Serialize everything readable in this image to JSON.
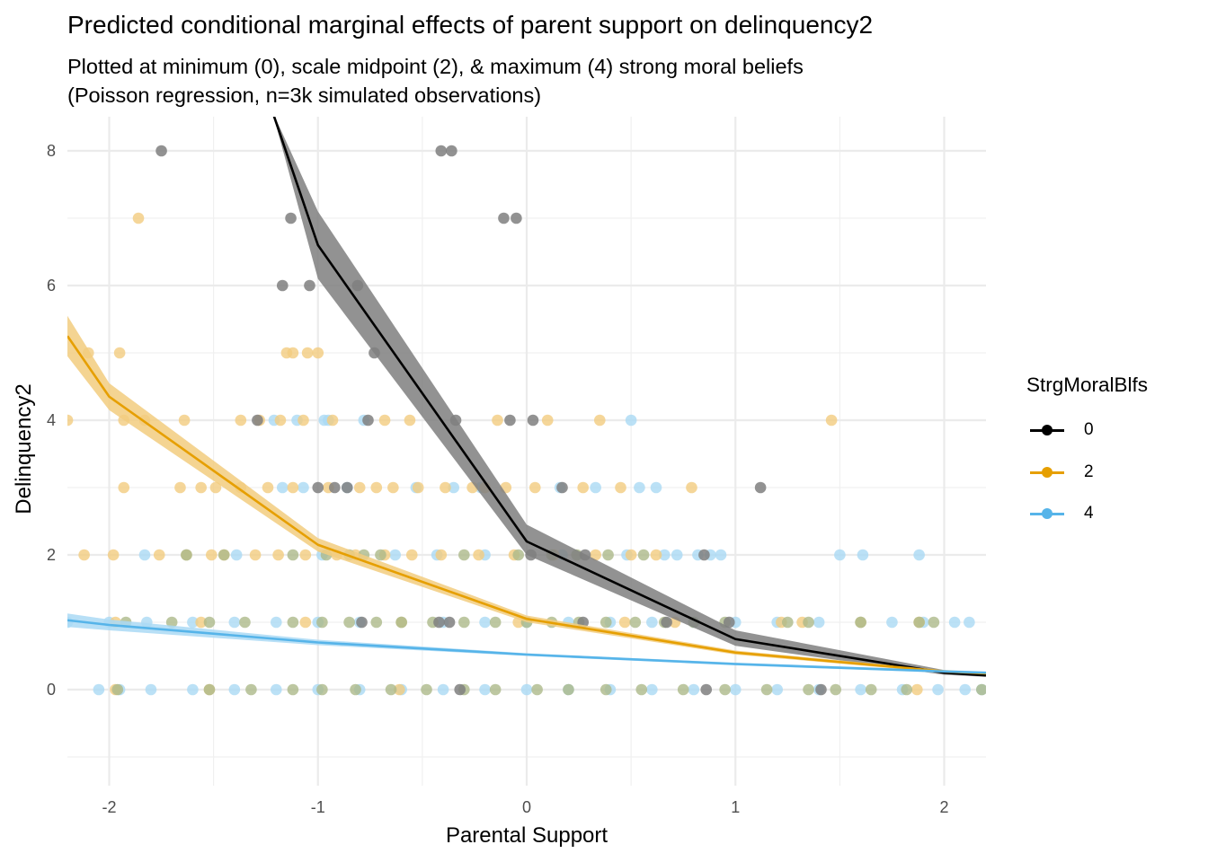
{
  "chart_data": {
    "type": "line",
    "title": "Predicted conditional marginal effects of parent support on delinquency2",
    "subtitle_lines": [
      "Plotted at minimum (0), scale midpoint (2), & maximum (4) strong moral beliefs",
      "(Poisson regression, n=3k simulated observations)"
    ],
    "xlabel": "Parental Support",
    "ylabel": "Delinquency2",
    "xlim": [
      -2.2,
      2.2
    ],
    "ylim": [
      -1.43,
      8.5
    ],
    "x_ticks": [
      -2,
      -1,
      0,
      1,
      2
    ],
    "x_tick_labels": [
      "-2",
      "-1",
      "0",
      "1",
      "2"
    ],
    "y_ticks": [
      0,
      2,
      4,
      6,
      8
    ],
    "y_tick_labels": [
      "0",
      "2",
      "4",
      "6",
      "8"
    ],
    "grid": true,
    "legend": {
      "title": "StrgMoralBlfs",
      "placement": "right",
      "entries": [
        {
          "label": "0",
          "color": "#000000"
        },
        {
          "label": "2",
          "color": "#E69F00"
        },
        {
          "label": "4",
          "color": "#56B4E9"
        }
      ]
    },
    "series": [
      {
        "name": "0",
        "color": "#000000",
        "ribbon_color": "#7f7f7f",
        "x": [
          -1.22,
          -1.0,
          0.0,
          1.0,
          2.0,
          2.2
        ],
        "y": [
          8.6,
          6.6,
          2.2,
          0.75,
          0.25,
          0.21
        ],
        "ci_low": [
          8.6,
          6.1,
          2.0,
          0.65,
          0.22,
          0.19
        ],
        "ci_high": [
          8.6,
          7.1,
          2.45,
          0.88,
          0.29,
          0.24
        ]
      },
      {
        "name": "2",
        "color": "#E69F00",
        "ribbon_color": "#F2CC7F",
        "x": [
          -2.2,
          -2.0,
          -1.0,
          0.0,
          1.0,
          2.0,
          2.2
        ],
        "y": [
          5.25,
          4.35,
          2.15,
          1.05,
          0.55,
          0.27,
          0.24
        ],
        "ci_low": [
          4.95,
          4.15,
          2.05,
          1.0,
          0.52,
          0.25,
          0.22
        ],
        "ci_high": [
          5.55,
          4.55,
          2.25,
          1.1,
          0.58,
          0.29,
          0.26
        ]
      },
      {
        "name": "4",
        "color": "#56B4E9",
        "ribbon_color": "#AAD9F4",
        "x": [
          -2.2,
          -2.0,
          -1.0,
          0.0,
          1.0,
          2.0,
          2.2
        ],
        "y": [
          1.03,
          0.96,
          0.7,
          0.52,
          0.38,
          0.27,
          0.25
        ],
        "ci_low": [
          0.93,
          0.88,
          0.66,
          0.5,
          0.36,
          0.25,
          0.23
        ],
        "ci_high": [
          1.13,
          1.04,
          0.74,
          0.54,
          0.4,
          0.29,
          0.27
        ]
      }
    ],
    "points": {
      "0": [
        [
          -1.75,
          8
        ],
        [
          -0.41,
          8
        ],
        [
          -0.36,
          8
        ],
        [
          -1.13,
          7
        ],
        [
          -0.11,
          7
        ],
        [
          -0.05,
          7
        ],
        [
          -1.17,
          6
        ],
        [
          -1.04,
          6
        ],
        [
          -0.81,
          6
        ],
        [
          -0.73,
          5
        ],
        [
          -1.29,
          4
        ],
        [
          -0.76,
          4
        ],
        [
          -0.34,
          4
        ],
        [
          -0.08,
          4
        ],
        [
          0.03,
          4
        ],
        [
          -1.0,
          3
        ],
        [
          -0.92,
          3
        ],
        [
          -0.86,
          3
        ],
        [
          0.17,
          3
        ],
        [
          1.12,
          3
        ],
        [
          0.02,
          2
        ],
        [
          0.28,
          2
        ],
        [
          0.85,
          2
        ],
        [
          -0.79,
          1
        ],
        [
          -0.42,
          1
        ],
        [
          -0.37,
          1
        ],
        [
          0.27,
          1
        ],
        [
          0.67,
          1
        ],
        [
          0.97,
          1
        ],
        [
          -0.32,
          0
        ],
        [
          0.86,
          0
        ],
        [
          1.41,
          0
        ]
      ],
      "2": [
        [
          -1.86,
          7
        ],
        [
          -2.1,
          5
        ],
        [
          -1.95,
          5
        ],
        [
          -1.15,
          5
        ],
        [
          -1.12,
          5
        ],
        [
          -1.05,
          5
        ],
        [
          -1.0,
          5
        ],
        [
          -2.2,
          4
        ],
        [
          -1.93,
          4
        ],
        [
          -1.83,
          4
        ],
        [
          -1.64,
          4
        ],
        [
          -1.37,
          4
        ],
        [
          -1.28,
          4
        ],
        [
          -1.18,
          4
        ],
        [
          -1.07,
          4
        ],
        [
          -0.93,
          4
        ],
        [
          -0.68,
          4
        ],
        [
          -0.56,
          4
        ],
        [
          -0.14,
          4
        ],
        [
          0.1,
          4
        ],
        [
          0.35,
          4
        ],
        [
          1.46,
          4
        ],
        [
          -1.93,
          3
        ],
        [
          -1.66,
          3
        ],
        [
          -1.56,
          3
        ],
        [
          -1.49,
          3
        ],
        [
          -1.37,
          3
        ],
        [
          -1.24,
          3
        ],
        [
          -1.12,
          3
        ],
        [
          -0.95,
          3
        ],
        [
          -0.8,
          3
        ],
        [
          -0.72,
          3
        ],
        [
          -0.64,
          3
        ],
        [
          -0.52,
          3
        ],
        [
          -0.39,
          3
        ],
        [
          -0.26,
          3
        ],
        [
          -0.2,
          3
        ],
        [
          -0.1,
          3
        ],
        [
          0.04,
          3
        ],
        [
          0.27,
          3
        ],
        [
          0.45,
          3
        ],
        [
          0.79,
          3
        ],
        [
          -2.12,
          2
        ],
        [
          -1.98,
          2
        ],
        [
          -1.76,
          2
        ],
        [
          -1.63,
          2
        ],
        [
          -1.51,
          2
        ],
        [
          -1.45,
          2
        ],
        [
          -1.3,
          2
        ],
        [
          -1.19,
          2
        ],
        [
          -1.06,
          2
        ],
        [
          -0.91,
          2
        ],
        [
          -0.82,
          2
        ],
        [
          -0.68,
          2
        ],
        [
          -0.55,
          2
        ],
        [
          -0.41,
          2
        ],
        [
          -0.23,
          2
        ],
        [
          -0.06,
          2
        ],
        [
          0.13,
          2
        ],
        [
          0.33,
          2
        ],
        [
          0.5,
          2
        ],
        [
          0.62,
          2
        ],
        [
          -1.97,
          1
        ],
        [
          -1.56,
          1
        ],
        [
          -1.06,
          1
        ],
        [
          -0.6,
          1
        ],
        [
          -0.04,
          1
        ],
        [
          0.47,
          1
        ],
        [
          0.71,
          1
        ],
        [
          1.22,
          1
        ],
        [
          1.32,
          1
        ],
        [
          1.6,
          1
        ],
        [
          1.88,
          1
        ],
        [
          -1.97,
          0
        ],
        [
          -1.52,
          0
        ],
        [
          -0.61,
          0
        ],
        [
          1.87,
          0
        ]
      ],
      "4": [
        [
          -0.78,
          4
        ],
        [
          -1.21,
          4
        ],
        [
          -1.1,
          4
        ],
        [
          -0.97,
          4
        ],
        [
          -0.95,
          4
        ],
        [
          0.5,
          4
        ],
        [
          -1.17,
          3
        ],
        [
          -1.07,
          3
        ],
        [
          -0.86,
          3
        ],
        [
          -0.53,
          3
        ],
        [
          -0.35,
          3
        ],
        [
          -0.22,
          3
        ],
        [
          0.16,
          3
        ],
        [
          0.33,
          3
        ],
        [
          0.54,
          3
        ],
        [
          0.62,
          3
        ],
        [
          -1.83,
          2
        ],
        [
          -1.63,
          2
        ],
        [
          -1.39,
          2
        ],
        [
          -0.98,
          2
        ],
        [
          -0.63,
          2
        ],
        [
          -0.43,
          2
        ],
        [
          -0.2,
          2
        ],
        [
          0.17,
          2
        ],
        [
          0.48,
          2
        ],
        [
          0.66,
          2
        ],
        [
          0.72,
          2
        ],
        [
          0.82,
          2
        ],
        [
          0.88,
          2
        ],
        [
          0.93,
          2
        ],
        [
          1.5,
          2
        ],
        [
          1.61,
          2
        ],
        [
          1.88,
          2
        ],
        [
          -2.2,
          1
        ],
        [
          -2.0,
          1
        ],
        [
          -1.82,
          1
        ],
        [
          -1.6,
          1
        ],
        [
          -1.4,
          1
        ],
        [
          -1.2,
          1
        ],
        [
          -1.0,
          1
        ],
        [
          -0.8,
          1
        ],
        [
          -0.6,
          1
        ],
        [
          -0.4,
          1
        ],
        [
          -0.2,
          1
        ],
        [
          0.0,
          1
        ],
        [
          0.2,
          1
        ],
        [
          0.4,
          1
        ],
        [
          0.6,
          1
        ],
        [
          0.8,
          1
        ],
        [
          1.0,
          1
        ],
        [
          1.2,
          1
        ],
        [
          1.4,
          1
        ],
        [
          1.6,
          1
        ],
        [
          1.75,
          1
        ],
        [
          1.9,
          1
        ],
        [
          2.05,
          1
        ],
        [
          2.12,
          1
        ],
        [
          -2.05,
          0
        ],
        [
          -1.95,
          0
        ],
        [
          -1.8,
          0
        ],
        [
          -1.6,
          0
        ],
        [
          -1.4,
          0
        ],
        [
          -1.2,
          0
        ],
        [
          -1.0,
          0
        ],
        [
          -0.8,
          0
        ],
        [
          -0.6,
          0
        ],
        [
          -0.4,
          0
        ],
        [
          -0.2,
          0
        ],
        [
          0.0,
          0
        ],
        [
          0.2,
          0
        ],
        [
          0.4,
          0
        ],
        [
          0.6,
          0
        ],
        [
          0.8,
          0
        ],
        [
          1.0,
          0
        ],
        [
          1.2,
          0
        ],
        [
          1.4,
          0
        ],
        [
          1.6,
          0
        ],
        [
          1.8,
          0
        ],
        [
          1.97,
          0
        ],
        [
          2.1,
          0
        ],
        [
          2.18,
          0
        ]
      ],
      "mixed_olive": [
        [
          -1.63,
          2
        ],
        [
          -1.45,
          2
        ],
        [
          -1.12,
          2
        ],
        [
          -0.96,
          2
        ],
        [
          -0.85,
          2
        ],
        [
          -0.78,
          2
        ],
        [
          -0.7,
          2
        ],
        [
          -0.3,
          2
        ],
        [
          -0.04,
          2
        ],
        [
          0.12,
          2
        ],
        [
          0.24,
          2
        ],
        [
          0.39,
          2
        ],
        [
          0.56,
          2
        ],
        [
          -1.92,
          1
        ],
        [
          -1.7,
          1
        ],
        [
          -1.52,
          1
        ],
        [
          -1.35,
          1
        ],
        [
          -1.12,
          1
        ],
        [
          -0.98,
          1
        ],
        [
          -0.85,
          1
        ],
        [
          -0.72,
          1
        ],
        [
          -0.6,
          1
        ],
        [
          -0.45,
          1
        ],
        [
          -0.3,
          1
        ],
        [
          -0.15,
          1
        ],
        [
          0.0,
          1
        ],
        [
          0.12,
          1
        ],
        [
          0.25,
          1
        ],
        [
          0.38,
          1
        ],
        [
          0.52,
          1
        ],
        [
          0.66,
          1
        ],
        [
          0.8,
          1
        ],
        [
          0.95,
          1
        ],
        [
          1.25,
          1
        ],
        [
          1.35,
          1
        ],
        [
          1.6,
          1
        ],
        [
          1.88,
          1
        ],
        [
          1.95,
          1
        ],
        [
          -1.96,
          0
        ],
        [
          -1.52,
          0
        ],
        [
          -1.32,
          0
        ],
        [
          -1.12,
          0
        ],
        [
          -0.98,
          0
        ],
        [
          -0.82,
          0
        ],
        [
          -0.65,
          0
        ],
        [
          -0.48,
          0
        ],
        [
          -0.3,
          0
        ],
        [
          -0.15,
          0
        ],
        [
          0.05,
          0
        ],
        [
          0.2,
          0
        ],
        [
          0.38,
          0
        ],
        [
          0.55,
          0
        ],
        [
          0.75,
          0
        ],
        [
          0.95,
          0
        ],
        [
          1.15,
          0
        ],
        [
          1.35,
          0
        ],
        [
          1.48,
          0
        ],
        [
          1.65,
          0
        ],
        [
          1.82,
          0
        ],
        [
          2.18,
          0
        ]
      ]
    },
    "point_colors": {
      "0": "#7f7f7f",
      "2": "#F2CC7F",
      "4": "#AAD9F4",
      "mixed_olive": "#ACB98A"
    }
  }
}
